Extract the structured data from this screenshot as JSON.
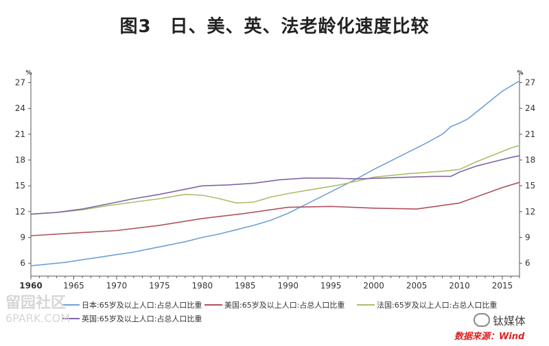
{
  "title": "图3　日、美、英、法老龄化速度比较",
  "watermark_left": {
    "line1": "留园社区",
    "line2": "6PARK.COM"
  },
  "watermark_right": "钛媒体",
  "source": "数据来源：Wind",
  "chart_data": {
    "type": "line",
    "title": "图3　日、美、英、法老龄化速度比较",
    "unit_left": "%",
    "unit_right": "%",
    "xlim": [
      1960,
      2017
    ],
    "ylim": [
      4.5,
      28
    ],
    "x_ticks": [
      1960,
      1965,
      1970,
      1975,
      1980,
      1985,
      1990,
      1995,
      2000,
      2005,
      2010,
      2015
    ],
    "y_ticks": [
      6,
      9,
      12,
      15,
      18,
      21,
      24,
      27
    ],
    "grid": false,
    "legend_position": "bottom",
    "series": [
      {
        "name": "日本:65岁及以上人口:占总人口比重",
        "color": "#6f9fd6",
        "x": [
          1960,
          1962,
          1964,
          1966,
          1968,
          1970,
          1972,
          1974,
          1976,
          1978,
          1980,
          1982,
          1984,
          1986,
          1988,
          1990,
          1992,
          1994,
          1996,
          1998,
          2000,
          2002,
          2004,
          2006,
          2008,
          2009,
          2010,
          2011,
          2012,
          2013,
          2014,
          2015,
          2016,
          2017
        ],
        "y": [
          5.7,
          5.9,
          6.1,
          6.4,
          6.7,
          7.0,
          7.3,
          7.7,
          8.1,
          8.5,
          9.0,
          9.4,
          9.9,
          10.4,
          11.0,
          11.8,
          12.8,
          13.8,
          14.8,
          15.8,
          16.9,
          17.9,
          18.9,
          19.9,
          21.0,
          21.9,
          22.3,
          22.8,
          23.6,
          24.4,
          25.2,
          26.0,
          26.6,
          27.2
        ]
      },
      {
        "name": "美国:65岁及以上人口:占总人口比重",
        "color": "#b0515a",
        "x": [
          1960,
          1965,
          1970,
          1975,
          1980,
          1985,
          1990,
          1995,
          2000,
          2005,
          2010,
          2015,
          2017
        ],
        "y": [
          9.2,
          9.5,
          9.8,
          10.4,
          11.2,
          11.8,
          12.5,
          12.6,
          12.4,
          12.3,
          13.0,
          14.8,
          15.4
        ]
      },
      {
        "name": "法国:65岁及以上人口:占总人口比重",
        "color": "#a9be6b",
        "x": [
          1960,
          1963,
          1966,
          1969,
          1972,
          1975,
          1978,
          1980,
          1982,
          1984,
          1986,
          1988,
          1990,
          1993,
          1996,
          2000,
          2004,
          2008,
          2010,
          2012,
          2014,
          2016,
          2017
        ],
        "y": [
          11.7,
          11.9,
          12.2,
          12.7,
          13.1,
          13.5,
          14.0,
          13.9,
          13.5,
          13.0,
          13.1,
          13.7,
          14.1,
          14.6,
          15.1,
          16.0,
          16.4,
          16.7,
          16.9,
          17.8,
          18.6,
          19.4,
          19.7
        ]
      },
      {
        "name": "英国:65岁及以上人口:占总人口比重",
        "color": "#8064a2",
        "x": [
          1960,
          1963,
          1966,
          1969,
          1972,
          1975,
          1978,
          1980,
          1983,
          1986,
          1989,
          1992,
          1995,
          1998,
          2001,
          2004,
          2007,
          2009,
          2010,
          2012,
          2014,
          2016,
          2017
        ],
        "y": [
          11.7,
          11.9,
          12.3,
          12.9,
          13.5,
          14.0,
          14.6,
          15.0,
          15.1,
          15.3,
          15.7,
          15.9,
          15.9,
          15.8,
          15.9,
          16.0,
          16.1,
          16.1,
          16.6,
          17.3,
          17.8,
          18.3,
          18.5
        ]
      }
    ]
  }
}
